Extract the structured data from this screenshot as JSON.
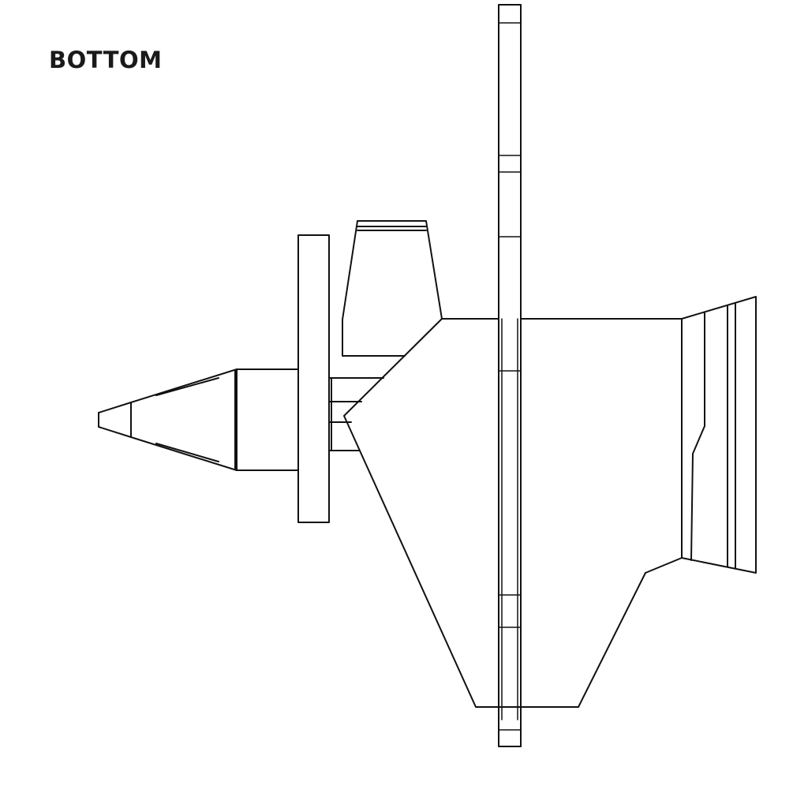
{
  "view_label": "BOTTOM",
  "colors": {
    "background": "#ffffff",
    "line": "#111111",
    "label": "#1a1a1a"
  }
}
